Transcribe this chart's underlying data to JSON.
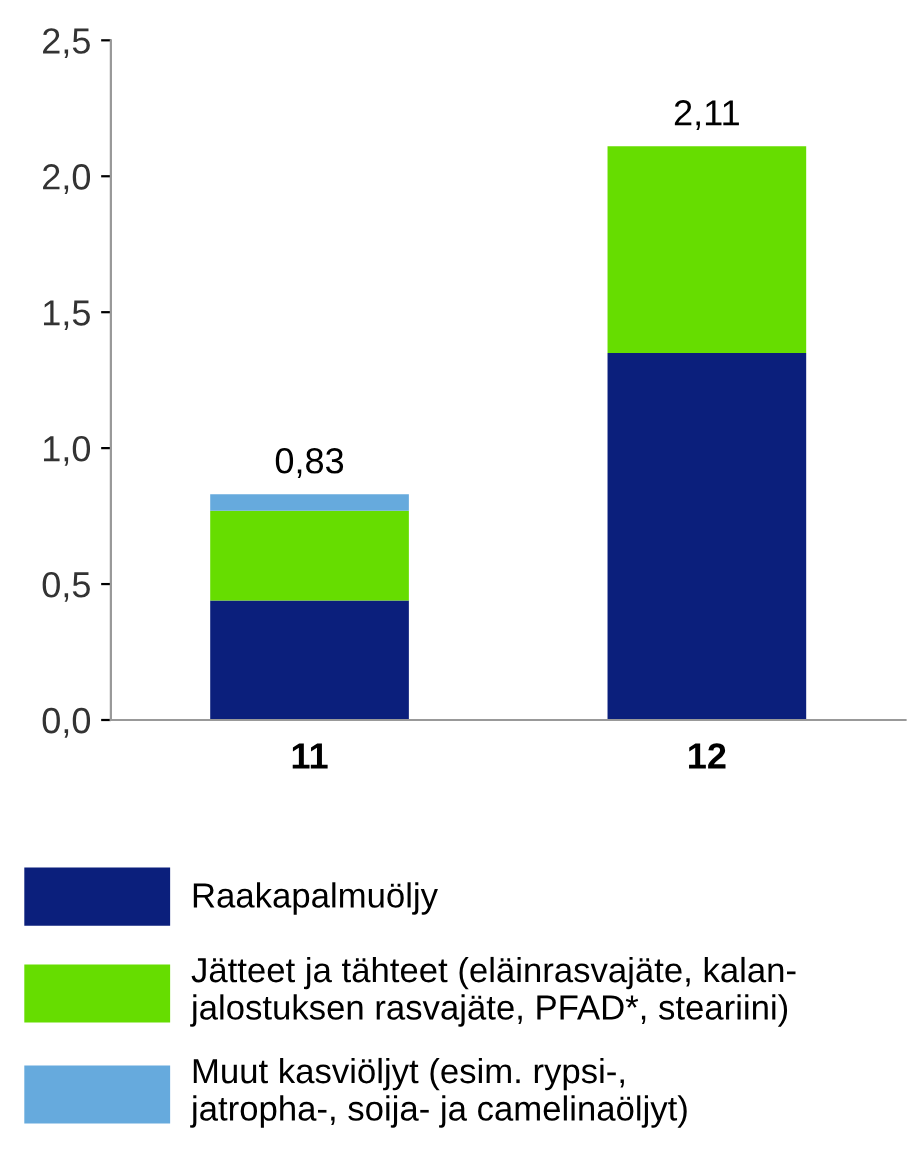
{
  "chart_data": {
    "type": "bar",
    "stacked": true,
    "categories": [
      "11",
      "12"
    ],
    "series": [
      {
        "name": "Raakapalmuöljy",
        "color": "#0b1f7c",
        "values": [
          0.44,
          1.35
        ]
      },
      {
        "name": "Jätteet ja tähteet (eläinrasvajäte, kalan-\njalostuksen rasvajäte, PFAD*, steariini)",
        "color": "#66dd00",
        "values": [
          0.33,
          0.76
        ]
      },
      {
        "name": "Muut kasviöljyt (esim. rypsi-,\njatropha-, soija- ja camelinaöljyt)",
        "color": "#66aadd",
        "values": [
          0.06,
          0
        ]
      }
    ],
    "totals": [
      "0,83",
      "2,11"
    ],
    "ylim": [
      0,
      2.5
    ],
    "yticks": [
      {
        "value": 0,
        "label": "0,0"
      },
      {
        "value": 0.5,
        "label": "0,5"
      },
      {
        "value": 1,
        "label": "1,0"
      },
      {
        "value": 1.5,
        "label": "1,5"
      },
      {
        "value": 2,
        "label": "2,0"
      },
      {
        "value": 2.5,
        "label": "2,5"
      }
    ],
    "grid": false,
    "legend": "bottom"
  }
}
